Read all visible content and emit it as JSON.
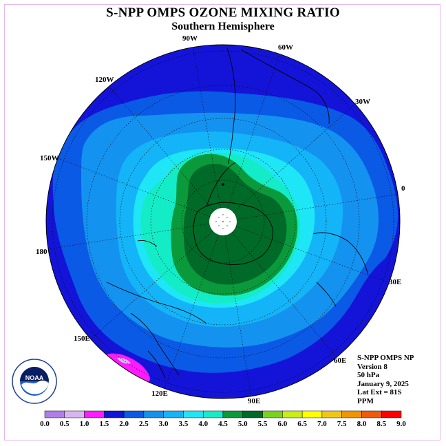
{
  "title": "S-NPP OMPS OZONE MIXING RATIO",
  "subtitle": "Southern Hemisphere",
  "longitude_labels": [
    "90W",
    "60W",
    "30W",
    "0",
    "30E",
    "60E",
    "90E",
    "120E",
    "150E",
    "180",
    "150W",
    "120W"
  ],
  "info": {
    "instrument": "S-NPP OMPS NP",
    "version": "Version 8",
    "pressure": "50 hPa",
    "date": "January 9, 2025",
    "lat_ext": "Lat Ext = 81S",
    "units": "PPM"
  },
  "logo": {
    "text": "NOAA",
    "icon": "noaa-logo-icon"
  },
  "colorbar": {
    "ticks": [
      "0.0",
      "0.5",
      "1.0",
      "1.5",
      "2.0",
      "2.5",
      "3.0",
      "3.5",
      "4.0",
      "4.5",
      "5.0",
      "5.5",
      "6.0",
      "6.5",
      "7.0",
      "7.5",
      "8.0",
      "8.5",
      "9.0"
    ],
    "colors": [
      "#b07ee8",
      "#d8b4f0",
      "#ff1aff",
      "#1414d8",
      "#0a5ae6",
      "#1492f0",
      "#14b4f8",
      "#1ee6f6",
      "#14ecc8",
      "#0a9a3c",
      "#006a28",
      "#7ad21e",
      "#c8ee14",
      "#ffff00",
      "#f0c814",
      "#f09600",
      "#f05a0a",
      "#ff0000",
      "#825032"
    ]
  },
  "chart_data": {
    "type": "polar-contour-map",
    "projection": "south polar stereographic",
    "variable": "ozone mixing ratio",
    "units": "PPM",
    "pressure_hPa": 50,
    "date": "January 9, 2025",
    "lat_extent": "81S",
    "levels": [
      0.0,
      0.5,
      1.0,
      1.5,
      2.0,
      2.5,
      3.0,
      3.5,
      4.0,
      4.5,
      5.0,
      5.5,
      6.0,
      6.5,
      7.0,
      7.5,
      8.0,
      8.5,
      9.0
    ],
    "fields": [
      {
        "range": [
          1.5,
          2.0
        ],
        "color": "#1414d8",
        "region": "outer edge of hemisphere"
      },
      {
        "range": [
          2.0,
          2.5
        ],
        "color": "#0a5ae6",
        "region": "mid latitudes"
      },
      {
        "range": [
          2.5,
          3.0
        ],
        "color": "#1492f0",
        "region": "mid latitudes"
      },
      {
        "range": [
          3.0,
          3.5
        ],
        "color": "#14b4f8",
        "region": "subpolar ring"
      },
      {
        "range": [
          3.5,
          4.0
        ],
        "color": "#1ee6f6",
        "region": "subpolar ring"
      },
      {
        "range": [
          4.0,
          4.5
        ],
        "color": "#14ecc8",
        "region": "polar edge"
      },
      {
        "range": [
          4.5,
          5.0
        ],
        "color": "#0a9a3c",
        "region": "polar cap"
      },
      {
        "range": [
          5.0,
          5.5
        ],
        "color": "#006a28",
        "region": "core over Antarctica"
      },
      {
        "range": [
          1.0,
          1.5
        ],
        "color": "#ff1aff",
        "region": "small patch near 150E"
      }
    ],
    "grid": true
  }
}
